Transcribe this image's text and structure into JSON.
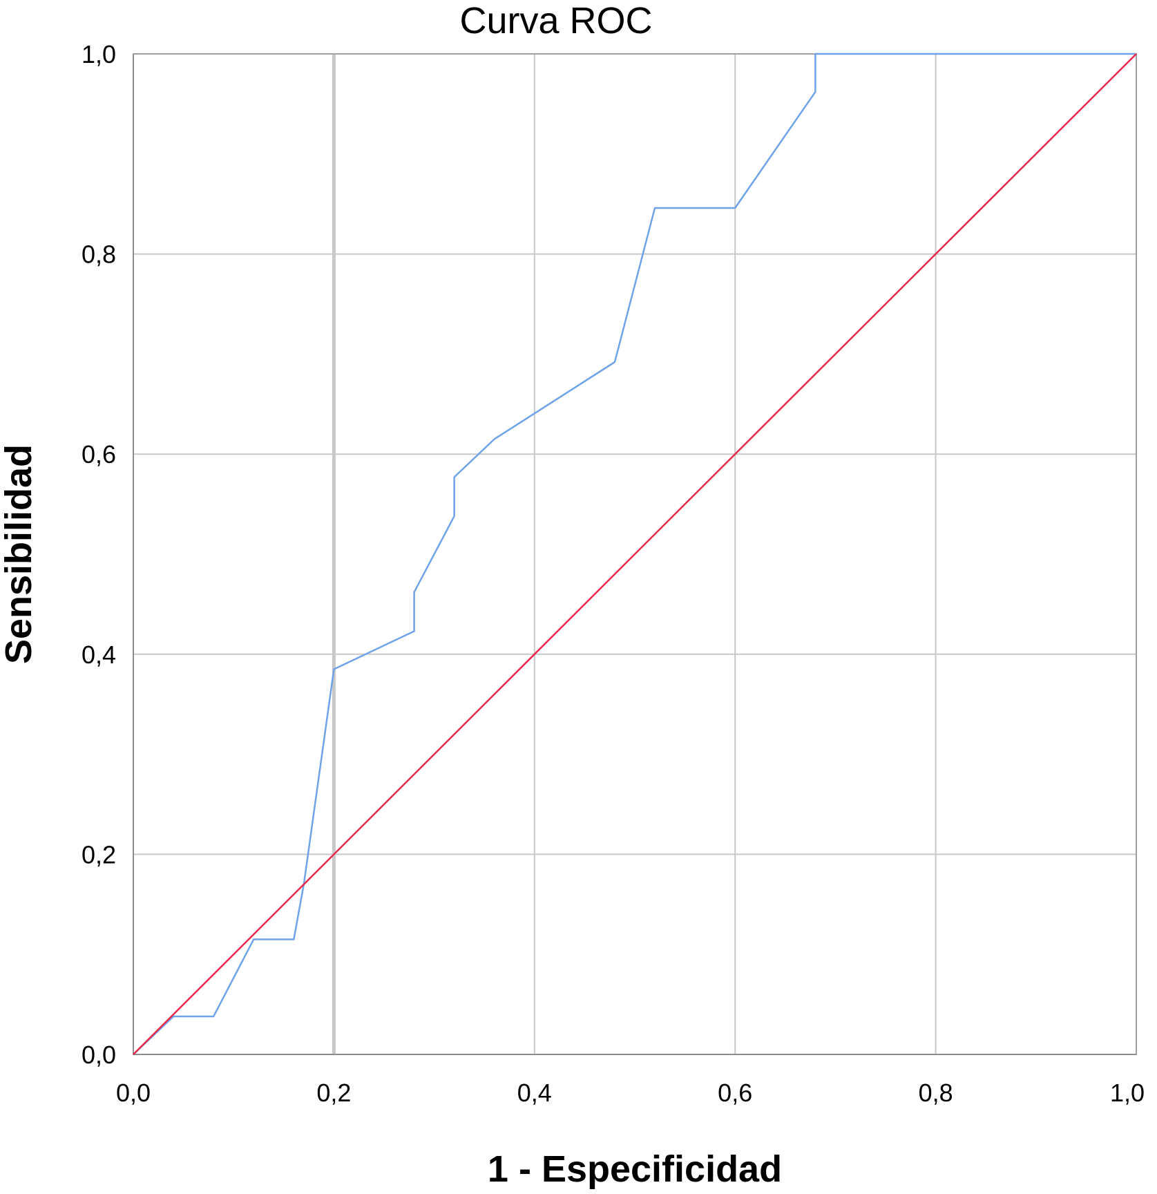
{
  "chart_data": {
    "type": "line",
    "title": "Curva ROC",
    "xlabel": "1 - Especificidad",
    "ylabel": "Sensibilidad",
    "xlim": [
      0,
      1
    ],
    "ylim": [
      0,
      1
    ],
    "x_ticks": [
      "0,0",
      "0,2",
      "0,4",
      "0,6",
      "0,8",
      "1,0"
    ],
    "y_ticks": [
      "0,0",
      "0,2",
      "0,4",
      "0,6",
      "0,8",
      "1,0"
    ],
    "grid": true,
    "series": [
      {
        "color": "#6fa3e8",
        "points": [
          [
            0,
            0
          ],
          [
            0.04,
            0.038
          ],
          [
            0.08,
            0.038
          ],
          [
            0.12,
            0.115
          ],
          [
            0.16,
            0.115
          ],
          [
            0.17,
            0.17
          ],
          [
            0.2,
            0.385
          ],
          [
            0.28,
            0.423
          ],
          [
            0.28,
            0.462
          ],
          [
            0.32,
            0.538
          ],
          [
            0.32,
            0.577
          ],
          [
            0.36,
            0.615
          ],
          [
            0.48,
            0.692
          ],
          [
            0.52,
            0.846
          ],
          [
            0.6,
            0.846
          ],
          [
            0.68,
            0.962
          ],
          [
            0.68,
            1.0
          ],
          [
            1.0,
            1.0
          ]
        ]
      },
      {
        "color": "#e8284a",
        "points": [
          [
            0,
            0
          ],
          [
            1,
            1
          ]
        ]
      }
    ]
  }
}
